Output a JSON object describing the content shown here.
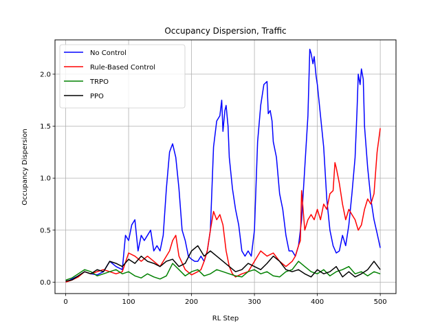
{
  "chart_data": {
    "type": "line",
    "title": "Occupancy Dispersion, Traffic",
    "xlabel": "RL Step",
    "ylabel": "Occupancy Dispersion",
    "xlim": [
      -17,
      525
    ],
    "ylim": [
      -0.11,
      2.33
    ],
    "xticks": [
      0,
      100,
      200,
      300,
      400,
      500
    ],
    "yticks": [
      0.0,
      0.5,
      1.0,
      1.5,
      2.0
    ],
    "xtick_labels": [
      "0",
      "100",
      "200",
      "300",
      "400",
      "500"
    ],
    "ytick_labels": [
      "0.0",
      "0.5",
      "1.0",
      "1.5",
      "2.0"
    ],
    "grid": true,
    "legend_position": "top-left",
    "series": [
      {
        "name": "No Control",
        "color": "#0000ff",
        "x": [
          0,
          10,
          20,
          30,
          40,
          50,
          60,
          70,
          80,
          90,
          95,
          100,
          105,
          110,
          115,
          120,
          125,
          130,
          135,
          140,
          145,
          150,
          155,
          160,
          165,
          168,
          170,
          175,
          180,
          185,
          190,
          195,
          200,
          205,
          210,
          215,
          220,
          225,
          230,
          235,
          240,
          245,
          248,
          250,
          253,
          255,
          258,
          260,
          265,
          270,
          275,
          280,
          285,
          290,
          295,
          300,
          305,
          310,
          315,
          320,
          322,
          325,
          328,
          330,
          335,
          340,
          345,
          350,
          355,
          360,
          365,
          370,
          375,
          380,
          385,
          388,
          390,
          393,
          395,
          398,
          400,
          405,
          410,
          415,
          420,
          425,
          430,
          435,
          440,
          445,
          450,
          455,
          460,
          463,
          465,
          468,
          470,
          473,
          475,
          480,
          485,
          490,
          495,
          500
        ],
        "values": [
          0.0,
          0.03,
          0.06,
          0.1,
          0.08,
          0.07,
          0.1,
          0.2,
          0.15,
          0.12,
          0.45,
          0.4,
          0.55,
          0.6,
          0.3,
          0.45,
          0.4,
          0.45,
          0.5,
          0.3,
          0.35,
          0.3,
          0.45,
          0.9,
          1.25,
          1.3,
          1.33,
          1.2,
          0.9,
          0.5,
          0.4,
          0.25,
          0.22,
          0.2,
          0.2,
          0.25,
          0.2,
          0.3,
          0.5,
          1.3,
          1.55,
          1.6,
          1.75,
          1.45,
          1.65,
          1.7,
          1.5,
          1.2,
          0.9,
          0.7,
          0.55,
          0.3,
          0.25,
          0.3,
          0.25,
          0.5,
          1.35,
          1.7,
          1.9,
          1.93,
          1.62,
          1.65,
          1.55,
          1.35,
          1.2,
          0.85,
          0.7,
          0.45,
          0.3,
          0.3,
          0.25,
          0.35,
          0.6,
          1.1,
          1.6,
          2.24,
          2.2,
          2.1,
          2.17,
          1.98,
          1.9,
          1.6,
          1.3,
          0.8,
          0.5,
          0.35,
          0.28,
          0.3,
          0.45,
          0.35,
          0.55,
          0.85,
          1.2,
          1.65,
          2.0,
          1.9,
          2.05,
          1.95,
          1.5,
          1.1,
          0.8,
          0.6,
          0.47,
          0.33
        ]
      },
      {
        "name": "Rule-Based Control",
        "color": "#ff0000",
        "x": [
          0,
          10,
          20,
          30,
          40,
          50,
          60,
          70,
          80,
          90,
          100,
          110,
          120,
          130,
          140,
          150,
          160,
          165,
          170,
          175,
          180,
          190,
          200,
          210,
          215,
          220,
          225,
          230,
          235,
          240,
          245,
          250,
          255,
          260,
          265,
          270,
          280,
          290,
          300,
          310,
          320,
          330,
          340,
          350,
          360,
          365,
          370,
          373,
          375,
          380,
          385,
          390,
          395,
          400,
          405,
          410,
          415,
          420,
          425,
          428,
          430,
          435,
          440,
          445,
          450,
          455,
          460,
          465,
          470,
          475,
          480,
          485,
          490,
          495,
          500
        ],
        "values": [
          0.0,
          0.02,
          0.05,
          0.1,
          0.08,
          0.1,
          0.12,
          0.1,
          0.08,
          0.1,
          0.28,
          0.25,
          0.2,
          0.25,
          0.2,
          0.15,
          0.25,
          0.3,
          0.4,
          0.45,
          0.25,
          0.12,
          0.07,
          0.1,
          0.12,
          0.2,
          0.3,
          0.5,
          0.68,
          0.6,
          0.65,
          0.55,
          0.3,
          0.15,
          0.08,
          0.05,
          0.08,
          0.1,
          0.2,
          0.3,
          0.25,
          0.28,
          0.2,
          0.15,
          0.2,
          0.25,
          0.35,
          0.4,
          0.88,
          0.5,
          0.6,
          0.65,
          0.6,
          0.7,
          0.6,
          0.75,
          0.7,
          0.85,
          0.88,
          1.15,
          1.1,
          0.95,
          0.75,
          0.6,
          0.7,
          0.65,
          0.6,
          0.5,
          0.55,
          0.7,
          0.8,
          0.75,
          0.85,
          1.25,
          1.48
        ]
      },
      {
        "name": "TRPO",
        "color": "#008000",
        "x": [
          0,
          10,
          20,
          30,
          40,
          50,
          60,
          70,
          80,
          90,
          100,
          110,
          120,
          130,
          140,
          150,
          160,
          170,
          180,
          190,
          200,
          210,
          220,
          230,
          240,
          250,
          260,
          270,
          280,
          290,
          300,
          310,
          320,
          330,
          340,
          350,
          360,
          370,
          380,
          390,
          400,
          410,
          420,
          430,
          440,
          450,
          460,
          470,
          480,
          490,
          500
        ],
        "values": [
          0.02,
          0.04,
          0.08,
          0.12,
          0.1,
          0.06,
          0.08,
          0.1,
          0.12,
          0.08,
          0.1,
          0.06,
          0.04,
          0.08,
          0.05,
          0.03,
          0.06,
          0.18,
          0.12,
          0.06,
          0.1,
          0.12,
          0.06,
          0.08,
          0.12,
          0.1,
          0.08,
          0.06,
          0.05,
          0.1,
          0.12,
          0.08,
          0.1,
          0.06,
          0.05,
          0.1,
          0.12,
          0.2,
          0.15,
          0.1,
          0.08,
          0.12,
          0.06,
          0.1,
          0.12,
          0.15,
          0.08,
          0.1,
          0.06,
          0.1,
          0.08
        ]
      },
      {
        "name": "PPO",
        "color": "#000000",
        "x": [
          0,
          10,
          20,
          30,
          40,
          50,
          60,
          70,
          80,
          90,
          100,
          110,
          120,
          130,
          140,
          150,
          160,
          170,
          180,
          190,
          200,
          210,
          220,
          230,
          240,
          250,
          260,
          270,
          280,
          290,
          300,
          310,
          320,
          330,
          340,
          350,
          360,
          370,
          380,
          390,
          400,
          410,
          420,
          430,
          440,
          450,
          460,
          470,
          480,
          490,
          500
        ],
        "values": [
          0.01,
          0.02,
          0.06,
          0.1,
          0.08,
          0.12,
          0.1,
          0.2,
          0.18,
          0.15,
          0.22,
          0.18,
          0.25,
          0.2,
          0.18,
          0.15,
          0.2,
          0.22,
          0.15,
          0.18,
          0.3,
          0.35,
          0.25,
          0.3,
          0.25,
          0.2,
          0.15,
          0.1,
          0.12,
          0.18,
          0.15,
          0.12,
          0.18,
          0.25,
          0.2,
          0.12,
          0.1,
          0.12,
          0.08,
          0.05,
          0.12,
          0.08,
          0.1,
          0.15,
          0.05,
          0.1,
          0.05,
          0.08,
          0.12,
          0.2,
          0.12
        ]
      }
    ]
  }
}
